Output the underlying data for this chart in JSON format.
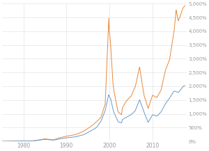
{
  "bg_color": "#ffffff",
  "grid_color": "#dddddd",
  "orange_color": "#e8883a",
  "blue_color": "#6699cc",
  "xlim": [
    1975,
    2018
  ],
  "ylim": [
    0,
    5000
  ],
  "yticks": [
    0,
    500,
    1000,
    1500,
    2000,
    2500,
    3000,
    3500,
    4000,
    4500,
    5000
  ],
  "xticks": [
    1980,
    1990,
    2000,
    2010
  ],
  "linewidth": 0.7,
  "seed": 12
}
